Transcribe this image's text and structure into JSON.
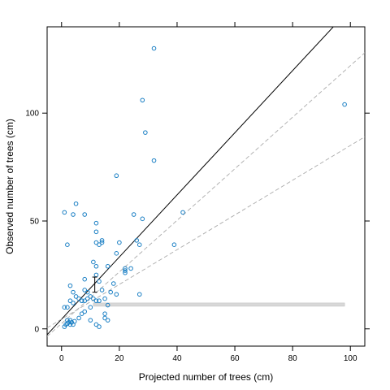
{
  "chart_data": {
    "type": "scatter",
    "title": "",
    "xlabel": "Projected number of trees (cm)",
    "ylabel": "Observed number of trees (cm)",
    "xlim": [
      -5,
      105
    ],
    "ylim": [
      -8,
      140
    ],
    "xticks": [
      0,
      20,
      40,
      60,
      80,
      100
    ],
    "yticks": [
      0,
      50,
      100
    ],
    "grid": false,
    "legend": "none",
    "point_color": "#1a7fc4",
    "points": [
      [
        1,
        1
      ],
      [
        1.5,
        2
      ],
      [
        2,
        2.5
      ],
      [
        2.5,
        3
      ],
      [
        3,
        2
      ],
      [
        3.5,
        3
      ],
      [
        4,
        2
      ],
      [
        2,
        4
      ],
      [
        3,
        4
      ],
      [
        4.5,
        3.5
      ],
      [
        1,
        10
      ],
      [
        2,
        10
      ],
      [
        3,
        13
      ],
      [
        4,
        12
      ],
      [
        5,
        15
      ],
      [
        4,
        17
      ],
      [
        3,
        20
      ],
      [
        6,
        5
      ],
      [
        7,
        7
      ],
      [
        8,
        8
      ],
      [
        6,
        14
      ],
      [
        7,
        13
      ],
      [
        8,
        13
      ],
      [
        9,
        14
      ],
      [
        8,
        18
      ],
      [
        9,
        17
      ],
      [
        8,
        23
      ],
      [
        7,
        13
      ],
      [
        10,
        10
      ],
      [
        10,
        15
      ],
      [
        11,
        14
      ],
      [
        11,
        31
      ],
      [
        12,
        13
      ],
      [
        12,
        29
      ],
      [
        12,
        25
      ],
      [
        12,
        40
      ],
      [
        13,
        22
      ],
      [
        13,
        39
      ],
      [
        12,
        45
      ],
      [
        12,
        49
      ],
      [
        10,
        4
      ],
      [
        12,
        2
      ],
      [
        13,
        1
      ],
      [
        14,
        41
      ],
      [
        14,
        40
      ],
      [
        15,
        7
      ],
      [
        15,
        5
      ],
      [
        16,
        4
      ],
      [
        16,
        11
      ],
      [
        16,
        29
      ],
      [
        13,
        13
      ],
      [
        15,
        14
      ],
      [
        14,
        18
      ],
      [
        17,
        17
      ],
      [
        18,
        21
      ],
      [
        19,
        16
      ],
      [
        19,
        35
      ],
      [
        20,
        40
      ],
      [
        22,
        26
      ],
      [
        22,
        28
      ],
      [
        24,
        28
      ],
      [
        25,
        53
      ],
      [
        26,
        41
      ],
      [
        27,
        39
      ],
      [
        27,
        16
      ],
      [
        28,
        51
      ],
      [
        19,
        71
      ],
      [
        28,
        106
      ],
      [
        29,
        91
      ],
      [
        32,
        78
      ],
      [
        32,
        130
      ],
      [
        39,
        39
      ],
      [
        42,
        54
      ],
      [
        98,
        104
      ],
      [
        1,
        54
      ],
      [
        2,
        39
      ],
      [
        4,
        53
      ],
      [
        5,
        58
      ],
      [
        8,
        53
      ],
      [
        22,
        27
      ]
    ],
    "error_bar": {
      "x": 11.5,
      "y": 20.5,
      "low": 17,
      "high": 24
    },
    "lines": [
      {
        "name": "",
        "slope": 1.44,
        "intercept": 4.5,
        "style": "solid",
        "color": "#000000"
      },
      {
        "name": "",
        "slope": 1.195,
        "intercept": 2.5,
        "style": "dashed",
        "color": "#aaaaaa"
      },
      {
        "name": "",
        "slope": 0.805,
        "intercept": 4.5,
        "style": "dashed",
        "color": "#aaaaaa"
      }
    ],
    "band": {
      "x_start": 11,
      "x_end": 98,
      "y_low": 10.5,
      "y_high": 12,
      "color": "#d8d8d8"
    }
  }
}
